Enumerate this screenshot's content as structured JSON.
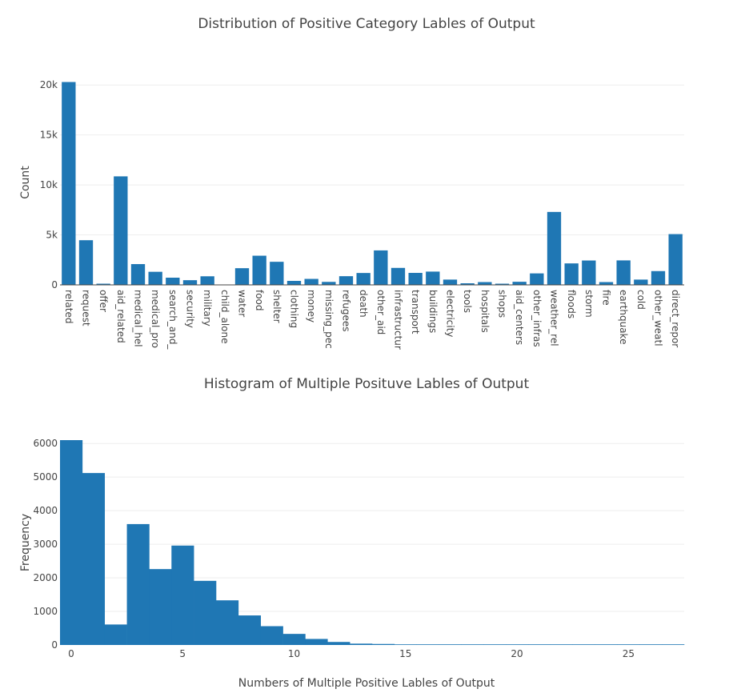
{
  "chart_data": [
    {
      "type": "bar",
      "title": "Distribution of Positive Category Lables of Output",
      "xlabel": "",
      "ylabel": "Count",
      "ylim": [
        0,
        20500
      ],
      "yticks": [
        0,
        5000,
        10000,
        15000,
        20000
      ],
      "ytick_labels": [
        "0",
        "5k",
        "10k",
        "15k",
        "20k"
      ],
      "grid": true,
      "color": "#1f77b4",
      "categories": [
        "related",
        "request",
        "offer",
        "aid_related",
        "medical_hel",
        "medical_pro",
        "search_and_",
        "security",
        "military",
        "child_alone",
        "water",
        "food",
        "shelter",
        "clothing",
        "money",
        "missing_pec",
        "refugees",
        "death",
        "other_aid",
        "infrastructur",
        "transport",
        "buildings",
        "electricity",
        "tools",
        "hospitals",
        "shops",
        "aid_centers",
        "other_infras",
        "weather_rel",
        "floods",
        "storm",
        "fire",
        "earthquake",
        "cold",
        "other_weatl",
        "direct_repor"
      ],
      "values": [
        20300,
        4470,
        120,
        10860,
        2080,
        1310,
        720,
        470,
        860,
        0,
        1670,
        2920,
        2310,
        400,
        600,
        300,
        870,
        1190,
        3450,
        1700,
        1200,
        1330,
        530,
        160,
        280,
        120,
        310,
        1150,
        7300,
        2150,
        2440,
        280,
        2450,
        530,
        1380,
        5080
      ]
    },
    {
      "type": "bar",
      "title": "Histogram of Multiple Posituve Lables of Output",
      "xlabel": "Numbers of Multiple Positive Lables of Output",
      "ylabel": "Frequency",
      "xlim": [
        -0.5,
        27.5
      ],
      "ylim": [
        0,
        6100
      ],
      "xticks": [
        0,
        5,
        10,
        15,
        20,
        25
      ],
      "yticks": [
        0,
        1000,
        2000,
        3000,
        4000,
        5000,
        6000
      ],
      "grid": true,
      "color": "#1f77b4",
      "bin_starts": [
        0,
        1,
        2,
        3,
        4,
        5,
        6,
        7,
        8,
        9,
        10,
        11,
        12,
        13,
        14,
        15,
        16,
        17,
        18,
        19,
        20,
        21,
        22,
        23,
        24,
        25,
        26,
        27
      ],
      "values": [
        6100,
        5120,
        610,
        3600,
        2260,
        2960,
        1910,
        1330,
        880,
        560,
        330,
        180,
        90,
        40,
        30,
        15,
        10,
        10,
        8,
        8,
        5,
        5,
        5,
        10,
        5,
        5,
        5,
        5
      ]
    }
  ]
}
